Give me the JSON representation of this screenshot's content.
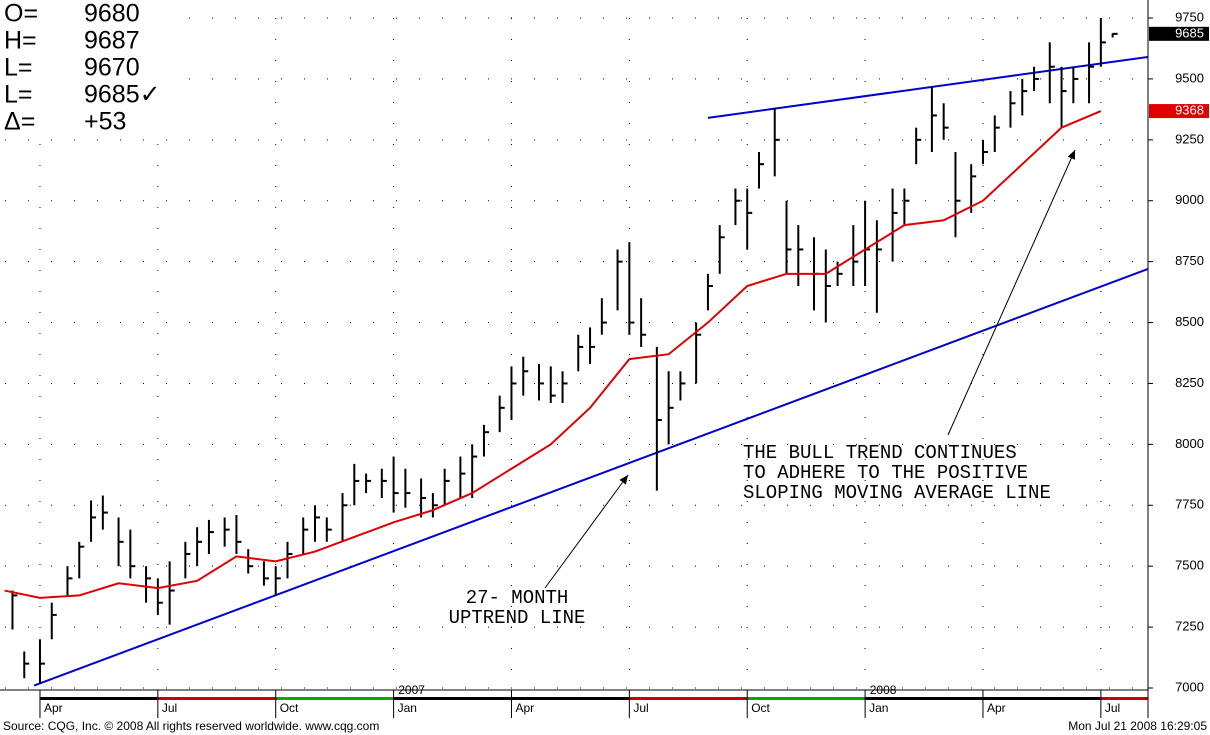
{
  "chart_data": {
    "type": "ohlc",
    "readout": [
      {
        "label": "O=",
        "text": "9680"
      },
      {
        "label": "H=",
        "text": "9687"
      },
      {
        "label": "L=",
        "text": "9670"
      },
      {
        "label": "L=",
        "text": "9685✓"
      },
      {
        "label": "Δ=",
        "text": "+53"
      }
    ],
    "xlim": [
      -0.89,
      28.2
    ],
    "xticks": [
      {
        "value": 0,
        "label": "Apr"
      },
      {
        "value": 3,
        "label": "Jul"
      },
      {
        "value": 6,
        "label": "Oct"
      },
      {
        "value": 9,
        "label": "Jan"
      },
      {
        "value": 12,
        "label": "Apr"
      },
      {
        "value": 15,
        "label": "Jul"
      },
      {
        "value": 18,
        "label": "Oct"
      },
      {
        "value": 21,
        "label": "Jan"
      },
      {
        "value": 24,
        "label": "Apr"
      },
      {
        "value": 27,
        "label": "Jul"
      }
    ],
    "year_labels": [
      {
        "value": 9,
        "label": "2007"
      },
      {
        "value": 21,
        "label": "2008"
      }
    ],
    "ylim": [
      7000,
      9750
    ],
    "yticks": [
      7000,
      7250,
      7500,
      7750,
      8000,
      8250,
      8500,
      8750,
      9000,
      9250,
      9500,
      9750
    ],
    "grid": true,
    "color": "#000000",
    "ohlc": {
      "x": [
        -0.7,
        -0.4,
        0,
        0.3,
        0.7,
        1,
        1.3,
        1.6,
        2,
        2.3,
        2.7,
        3,
        3.3,
        3.7,
        4,
        4.3,
        4.7,
        5,
        5.3,
        5.7,
        6,
        6.3,
        6.7,
        7,
        7.3,
        7.7,
        8,
        8.3,
        8.7,
        9,
        9.3,
        9.7,
        10,
        10.3,
        10.7,
        11,
        11.3,
        11.7,
        12,
        12.3,
        12.7,
        13,
        13.3,
        13.7,
        14,
        14.3,
        14.7,
        15,
        15.3,
        15.7,
        16,
        16.3,
        16.7,
        17,
        17.3,
        17.7,
        18,
        18.3,
        18.7,
        19,
        19.3,
        19.7,
        20,
        20.3,
        20.7,
        21,
        21.3,
        21.7,
        22,
        22.3,
        22.7,
        23,
        23.3,
        23.7,
        24,
        24.3,
        24.7,
        25,
        25.3,
        25.7,
        26,
        26.3,
        26.7,
        27,
        27.3
      ],
      "high": [
        7400,
        7150,
        7200,
        7350,
        7500,
        7600,
        7770,
        7790,
        7700,
        7650,
        7500,
        7450,
        7520,
        7600,
        7660,
        7690,
        7700,
        7710,
        7570,
        7520,
        7500,
        7600,
        7700,
        7750,
        7700,
        7800,
        7920,
        7880,
        7900,
        7950,
        7900,
        7860,
        7800,
        7900,
        7950,
        8000,
        8080,
        8200,
        8320,
        8360,
        8330,
        8320,
        8300,
        8450,
        8480,
        8600,
        8800,
        8830,
        8600,
        8400,
        8300,
        8300,
        8500,
        8700,
        8900,
        9050,
        9050,
        9200,
        9380,
        9000,
        8900,
        8850,
        8800,
        8750,
        8900,
        9000,
        8920,
        9050,
        9050,
        9300,
        9470,
        9400,
        9200,
        9150,
        9250,
        9350,
        9450,
        9500,
        9550,
        9650,
        9550,
        9550,
        9650,
        9750,
        9687
      ],
      "low": [
        7240,
        7040,
        7020,
        7200,
        7380,
        7450,
        7600,
        7650,
        7500,
        7450,
        7350,
        7300,
        7260,
        7450,
        7500,
        7550,
        7580,
        7550,
        7470,
        7420,
        7380,
        7450,
        7550,
        7600,
        7600,
        7600,
        7750,
        7800,
        7780,
        7720,
        7740,
        7700,
        7700,
        7750,
        7780,
        7780,
        7950,
        8050,
        8100,
        8200,
        8180,
        8170,
        8170,
        8300,
        8330,
        8450,
        8550,
        8450,
        8400,
        7810,
        8000,
        8180,
        8250,
        8550,
        8700,
        8900,
        8800,
        9050,
        9100,
        8700,
        8650,
        8550,
        8500,
        8650,
        8650,
        8650,
        8540,
        8750,
        8900,
        9150,
        9200,
        9250,
        8850,
        8950,
        9150,
        9200,
        9300,
        9350,
        9450,
        9400,
        9300,
        9400,
        9400,
        9550,
        9670
      ],
      "close": [
        7380,
        7100,
        7100,
        7300,
        7450,
        7580,
        7700,
        7720,
        7600,
        7500,
        7450,
        7350,
        7400,
        7550,
        7600,
        7640,
        7650,
        7600,
        7500,
        7450,
        7450,
        7550,
        7650,
        7700,
        7650,
        7750,
        7850,
        7850,
        7850,
        7800,
        7800,
        7780,
        7750,
        7850,
        7880,
        7950,
        8050,
        8150,
        8250,
        8300,
        8250,
        8200,
        8250,
        8400,
        8400,
        8500,
        8750,
        8500,
        8450,
        8100,
        8150,
        8250,
        8450,
        8650,
        8850,
        9000,
        8950,
        9150,
        9250,
        8800,
        8800,
        8700,
        8650,
        8700,
        8750,
        8800,
        8800,
        8950,
        9000,
        9250,
        9350,
        9300,
        9000,
        9100,
        9200,
        9300,
        9400,
        9450,
        9500,
        9550,
        9450,
        9500,
        9550,
        9650,
        9685
      ]
    },
    "moving_average": {
      "color": "#e00000",
      "x": [
        -0.9,
        0,
        1,
        2,
        3,
        4,
        5,
        6,
        7,
        8,
        9,
        10,
        11,
        12,
        13,
        14,
        15,
        16,
        17,
        18,
        19,
        20,
        21,
        22,
        23,
        24,
        25,
        26,
        27
      ],
      "values": [
        7400,
        7370,
        7380,
        7430,
        7410,
        7440,
        7540,
        7520,
        7560,
        7620,
        7680,
        7730,
        7800,
        7900,
        8000,
        8150,
        8350,
        8370,
        8500,
        8650,
        8700,
        8700,
        8800,
        8900,
        8920,
        9000,
        9150,
        9300,
        9368
      ]
    },
    "trend_lines": [
      {
        "color": "#0000cc",
        "x": [
          -0.15,
          28.2
        ],
        "y": [
          7010,
          8720
        ]
      },
      {
        "color": "#0000cc",
        "x": [
          17.0,
          28.2
        ],
        "y": [
          9340,
          9590
        ]
      }
    ],
    "price_tags": [
      {
        "value": 9685,
        "color": "#000000"
      },
      {
        "value": 9368,
        "color": "#e00000"
      }
    ],
    "annotations": [
      "27- MONTH",
      "UPTREND LINE",
      "THE BULL TREND CONTINUES",
      "TO ADHERE TO THE POSITIVE",
      "SLOPING MOVING AVERAGE LINE"
    ],
    "footer_left": "Source: CQG, Inc. © 2008 All rights reserved worldwide. www.cqg.com",
    "footer_right": "Mon Jul 21 2008 16:29:05"
  }
}
